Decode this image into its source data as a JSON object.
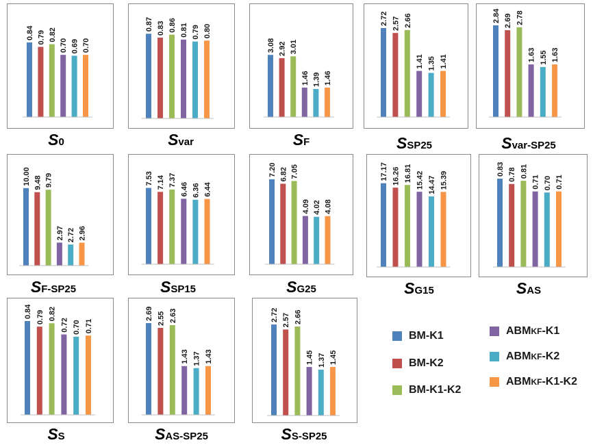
{
  "colors": [
    "#4F81BD",
    "#C0504D",
    "#9BBB59",
    "#8064A2",
    "#4BACC6",
    "#F79646"
  ],
  "legend": [
    {
      "main": "BM-K1",
      "sub": "",
      "rest": ""
    },
    {
      "main": "BM-K2",
      "sub": "",
      "rest": ""
    },
    {
      "main": "BM-K1-K2",
      "sub": "",
      "rest": ""
    },
    {
      "main": "ABM",
      "sub": "KF",
      "rest": "-K1"
    },
    {
      "main": "ABM",
      "sub": "KF",
      "rest": "-K2"
    },
    {
      "main": "ABM",
      "sub": "KF",
      "rest": "-K1-K2"
    }
  ],
  "chart_data": [
    {
      "type": "bar",
      "title": {
        "symbol": "S",
        "subscript": "0"
      },
      "categories": [
        "BM-K1",
        "BM-K2",
        "BM-K1-K2",
        "ABMKF-K1",
        "ABMKF-K2",
        "ABMKF-K1-K2"
      ],
      "values": [
        0.84,
        0.79,
        0.82,
        0.7,
        0.69,
        0.7
      ],
      "labels": [
        "0.84",
        "0.79",
        "0.82",
        "0.70",
        "0.69",
        "0.70"
      ],
      "ymax": 0.94
    },
    {
      "type": "bar",
      "title": {
        "symbol": "S",
        "subscript": "var"
      },
      "categories": [
        "BM-K1",
        "BM-K2",
        "BM-K1-K2",
        "ABMKF-K1",
        "ABMKF-K2",
        "ABMKF-K1-K2"
      ],
      "values": [
        0.87,
        0.83,
        0.86,
        0.81,
        0.79,
        0.8
      ],
      "labels": [
        "0.87",
        "0.83",
        "0.86",
        "0.81",
        "0.79",
        "0.80"
      ],
      "ymax": 0.9
    },
    {
      "type": "bar",
      "title": {
        "symbol": "S",
        "subscript": "F"
      },
      "categories": [
        "BM-K1",
        "BM-K2",
        "BM-K1-K2",
        "ABMKF-K1",
        "ABMKF-K2",
        "ABMKF-K1-K2"
      ],
      "values": [
        3.08,
        2.92,
        3.01,
        1.46,
        1.39,
        1.46
      ],
      "labels": [
        "3.08",
        "2.92",
        "3.01",
        "1.46",
        "1.39",
        "1.46"
      ],
      "ymax": 3.8
    },
    {
      "type": "bar",
      "title": {
        "symbol": "S",
        "subscript": "SP25"
      },
      "categories": [
        "BM-K1",
        "BM-K2",
        "BM-K1-K2",
        "ABMKF-K1",
        "ABMKF-K2",
        "ABMKF-K1-K2"
      ],
      "values": [
        2.72,
        2.57,
        2.66,
        1.41,
        1.35,
        1.41
      ],
      "labels": [
        "2.72",
        "2.57",
        "2.66",
        "1.41",
        "1.35",
        "1.41"
      ],
      "ymax": 2.72
    },
    {
      "type": "bar",
      "title": {
        "symbol": "S",
        "subscript": "var-SP25"
      },
      "categories": [
        "BM-K1",
        "BM-K2",
        "BM-K1-K2",
        "ABMKF-K1",
        "ABMKF-K2",
        "ABMKF-K1-K2"
      ],
      "values": [
        2.84,
        2.69,
        2.78,
        1.63,
        1.55,
        1.63
      ],
      "labels": [
        "2.84",
        "2.69",
        "2.78",
        "1.63",
        "1.55",
        "1.63"
      ],
      "ymax": 2.84
    },
    {
      "type": "bar",
      "title": {
        "symbol": "S",
        "subscript": "F-SP25"
      },
      "categories": [
        "BM-K1",
        "BM-K2",
        "BM-K1-K2",
        "ABMKF-K1",
        "ABMKF-K2",
        "ABMKF-K1-K2"
      ],
      "values": [
        10.0,
        9.48,
        9.79,
        2.97,
        2.72,
        2.96
      ],
      "labels": [
        "10.00",
        "9.48",
        "9.79",
        "2.97",
        "2.72",
        "2.96"
      ],
      "ymax": 10.6
    },
    {
      "type": "bar",
      "title": {
        "symbol": "S",
        "subscript": "SP15"
      },
      "categories": [
        "BM-K1",
        "BM-K2",
        "BM-K1-K2",
        "ABMKF-K1",
        "ABMKF-K2",
        "ABMKF-K1-K2"
      ],
      "values": [
        7.53,
        7.14,
        7.37,
        6.46,
        6.36,
        6.44
      ],
      "labels": [
        "7.53",
        "7.14",
        "7.37",
        "6.46",
        "6.36",
        "6.44"
      ],
      "ymax": 7.9
    },
    {
      "type": "bar",
      "title": {
        "symbol": "S",
        "subscript": "G25"
      },
      "categories": [
        "BM-K1",
        "BM-K2",
        "BM-K1-K2",
        "ABMKF-K1",
        "ABMKF-K2",
        "ABMKF-K1-K2"
      ],
      "values": [
        7.2,
        6.82,
        7.05,
        4.09,
        4.02,
        4.08
      ],
      "labels": [
        "7.20",
        "6.82",
        "7.05",
        "4.09",
        "4.02",
        "4.08"
      ],
      "ymax": 7.25
    },
    {
      "type": "bar",
      "title": {
        "symbol": "S",
        "subscript": "G15"
      },
      "categories": [
        "BM-K1",
        "BM-K2",
        "BM-K1-K2",
        "ABMKF-K1",
        "ABMKF-K2",
        "ABMKF-K1-K2"
      ],
      "values": [
        17.17,
        16.26,
        16.81,
        15.42,
        14.47,
        15.39
      ],
      "labels": [
        "17.17",
        "16.26",
        "16.81",
        "15.42",
        "14.47",
        "15.39"
      ],
      "ymax": 17.4
    },
    {
      "type": "bar",
      "title": {
        "symbol": "S",
        "subscript": "AS"
      },
      "categories": [
        "BM-K1",
        "BM-K2",
        "BM-K1-K2",
        "ABMKF-K1",
        "ABMKF-K2",
        "ABMKF-K1-K2"
      ],
      "values": [
        0.83,
        0.78,
        0.81,
        0.71,
        0.7,
        0.71
      ],
      "labels": [
        "0.83",
        "0.78",
        "0.81",
        "0.71",
        "0.70",
        "0.71"
      ],
      "ymax": 0.83
    },
    {
      "type": "bar",
      "title": {
        "symbol": "S",
        "subscript": "S"
      },
      "categories": [
        "BM-K1",
        "BM-K2",
        "BM-K1-K2",
        "ABMKF-K1",
        "ABMKF-K2",
        "ABMKF-K1-K2"
      ],
      "values": [
        0.84,
        0.79,
        0.82,
        0.72,
        0.7,
        0.71
      ],
      "labels": [
        "0.84",
        "0.79",
        "0.82",
        "0.72",
        "0.70",
        "0.71"
      ],
      "ymax": 0.84
    },
    {
      "type": "bar",
      "title": {
        "symbol": "S",
        "subscript": "AS-SP25"
      },
      "categories": [
        "BM-K1",
        "BM-K2",
        "BM-K1-K2",
        "ABMKF-K1",
        "ABMKF-K2",
        "ABMKF-K1-K2"
      ],
      "values": [
        2.69,
        2.55,
        2.63,
        1.43,
        1.37,
        1.43
      ],
      "labels": [
        "2.69",
        "2.55",
        "2.63",
        "1.43",
        "1.37",
        "1.43"
      ],
      "ymax": 2.69
    },
    {
      "type": "bar",
      "title": {
        "symbol": "S",
        "subscript": "S-SP25"
      },
      "categories": [
        "BM-K1",
        "BM-K2",
        "BM-K1-K2",
        "ABMKF-K1",
        "ABMKF-K2",
        "ABMKF-K1-K2"
      ],
      "values": [
        2.72,
        2.57,
        2.66,
        1.45,
        1.37,
        1.45
      ],
      "labels": [
        "2.72",
        "2.57",
        "2.66",
        "1.45",
        "1.37",
        "1.45"
      ],
      "ymax": 2.72
    }
  ]
}
